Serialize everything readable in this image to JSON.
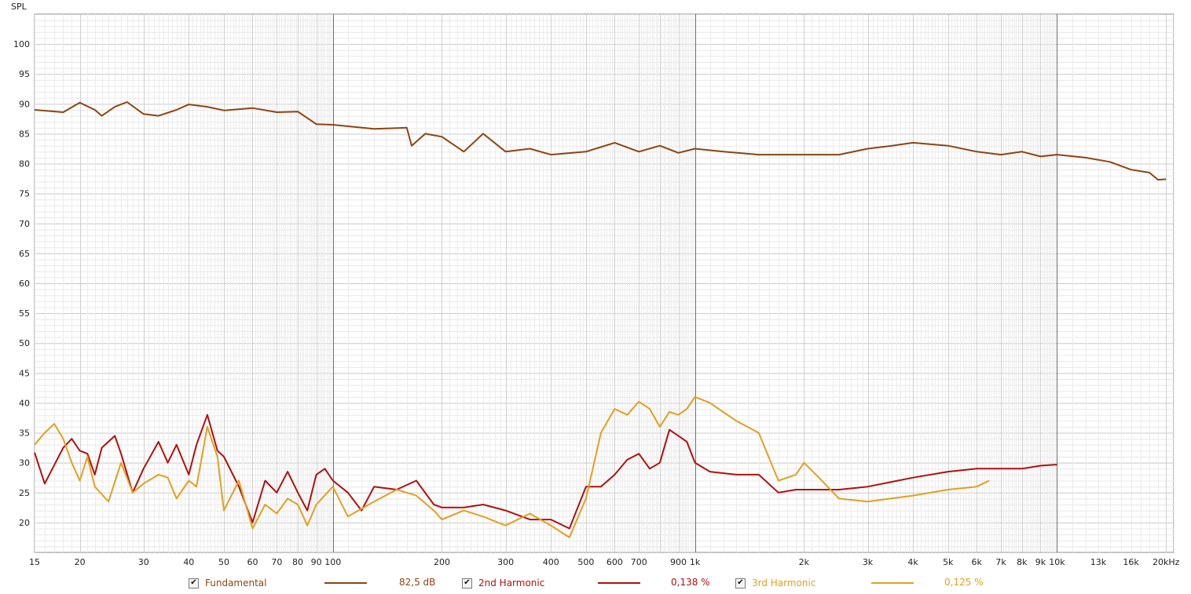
{
  "colors": {
    "fundamental": "#8B4513",
    "harmonic2": "#B01010",
    "harmonic3": "#E0A020",
    "grid_minor": "#d8d8d8",
    "grid_decade": "#6e6e6e",
    "text": "#222222"
  },
  "legend": [
    {
      "label": "Fundamental",
      "value": "82,5 dB",
      "checked": "✔"
    },
    {
      "label": "2nd Harmonic",
      "value": "0,138 %",
      "checked": "✔"
    },
    {
      "label": "3rd Harmonic",
      "value": "0,125 %",
      "checked": "✔"
    }
  ],
  "chart_data": {
    "type": "line",
    "ylabel": "SPL",
    "xscale": "log",
    "xlim": [
      15,
      21000
    ],
    "ylim": [
      15,
      105
    ],
    "grid": true,
    "y_ticks": [
      20,
      25,
      30,
      35,
      40,
      45,
      50,
      55,
      60,
      65,
      70,
      75,
      80,
      85,
      90,
      95,
      100
    ],
    "x_ticks": [
      {
        "v": 15,
        "label": "15"
      },
      {
        "v": 20,
        "label": "20"
      },
      {
        "v": 30,
        "label": "30"
      },
      {
        "v": 40,
        "label": "40"
      },
      {
        "v": 50,
        "label": "50"
      },
      {
        "v": 60,
        "label": "60"
      },
      {
        "v": 70,
        "label": "70"
      },
      {
        "v": 80,
        "label": "80"
      },
      {
        "v": 90,
        "label": "90"
      },
      {
        "v": 100,
        "label": "100"
      },
      {
        "v": 200,
        "label": "200"
      },
      {
        "v": 300,
        "label": "300"
      },
      {
        "v": 400,
        "label": "400"
      },
      {
        "v": 500,
        "label": "500"
      },
      {
        "v": 600,
        "label": "600"
      },
      {
        "v": 700,
        "label": "700"
      },
      {
        "v": 900,
        "label": "900"
      },
      {
        "v": 1000,
        "label": "1k"
      },
      {
        "v": 2000,
        "label": "2k"
      },
      {
        "v": 3000,
        "label": "3k"
      },
      {
        "v": 4000,
        "label": "4k"
      },
      {
        "v": 5000,
        "label": "5k"
      },
      {
        "v": 6000,
        "label": "6k"
      },
      {
        "v": 7000,
        "label": "7k"
      },
      {
        "v": 8000,
        "label": "8k"
      },
      {
        "v": 9000,
        "label": "9k"
      },
      {
        "v": 10000,
        "label": "10k"
      },
      {
        "v": 13000,
        "label": "13k"
      },
      {
        "v": 16000,
        "label": "16k"
      },
      {
        "v": 20000,
        "label": "20kHz"
      }
    ],
    "series": [
      {
        "name": "Fundamental",
        "points": [
          [
            15,
            89
          ],
          [
            18,
            88.6
          ],
          [
            20,
            90.2
          ],
          [
            22,
            89
          ],
          [
            23,
            88
          ],
          [
            25,
            89.5
          ],
          [
            27,
            90.3
          ],
          [
            30,
            88.3
          ],
          [
            33,
            88
          ],
          [
            37,
            89
          ],
          [
            40,
            89.9
          ],
          [
            45,
            89.5
          ],
          [
            50,
            88.9
          ],
          [
            60,
            89.3
          ],
          [
            70,
            88.6
          ],
          [
            80,
            88.7
          ],
          [
            90,
            86.6
          ],
          [
            100,
            86.5
          ],
          [
            130,
            85.8
          ],
          [
            160,
            86
          ],
          [
            165,
            83
          ],
          [
            180,
            85
          ],
          [
            200,
            84.5
          ],
          [
            230,
            82
          ],
          [
            260,
            85
          ],
          [
            300,
            82
          ],
          [
            350,
            82.5
          ],
          [
            400,
            81.5
          ],
          [
            500,
            82
          ],
          [
            600,
            83.5
          ],
          [
            700,
            82
          ],
          [
            800,
            83
          ],
          [
            900,
            81.8
          ],
          [
            1000,
            82.5
          ],
          [
            1200,
            82
          ],
          [
            1500,
            81.5
          ],
          [
            2000,
            81.5
          ],
          [
            2500,
            81.5
          ],
          [
            3000,
            82.5
          ],
          [
            3500,
            83
          ],
          [
            4000,
            83.5
          ],
          [
            5000,
            83
          ],
          [
            6000,
            82
          ],
          [
            7000,
            81.5
          ],
          [
            8000,
            82
          ],
          [
            9000,
            81.2
          ],
          [
            10000,
            81.5
          ],
          [
            12000,
            81
          ],
          [
            14000,
            80.3
          ],
          [
            16000,
            79
          ],
          [
            18000,
            78.5
          ],
          [
            19000,
            77.3
          ],
          [
            20000,
            77.4
          ]
        ]
      },
      {
        "name": "2nd Harmonic",
        "points": [
          [
            15,
            31.7
          ],
          [
            16,
            26.5
          ],
          [
            18,
            32.5
          ],
          [
            19,
            34
          ],
          [
            20,
            32
          ],
          [
            21,
            31.5
          ],
          [
            22,
            28
          ],
          [
            23,
            32.5
          ],
          [
            25,
            34.5
          ],
          [
            26,
            31.5
          ],
          [
            28,
            25
          ],
          [
            30,
            29
          ],
          [
            33,
            33.5
          ],
          [
            35,
            30
          ],
          [
            37,
            33
          ],
          [
            40,
            28
          ],
          [
            42,
            33
          ],
          [
            45,
            38
          ],
          [
            48,
            32
          ],
          [
            50,
            31
          ],
          [
            55,
            26
          ],
          [
            60,
            20
          ],
          [
            65,
            27
          ],
          [
            70,
            25
          ],
          [
            75,
            28.5
          ],
          [
            80,
            25
          ],
          [
            85,
            22
          ],
          [
            90,
            28
          ],
          [
            95,
            29
          ],
          [
            100,
            27
          ],
          [
            110,
            25
          ],
          [
            120,
            22
          ],
          [
            130,
            26
          ],
          [
            150,
            25.5
          ],
          [
            170,
            27
          ],
          [
            190,
            23
          ],
          [
            200,
            22.5
          ],
          [
            230,
            22.5
          ],
          [
            260,
            23
          ],
          [
            300,
            22
          ],
          [
            350,
            20.5
          ],
          [
            400,
            20.5
          ],
          [
            450,
            19
          ],
          [
            500,
            26
          ],
          [
            550,
            26
          ],
          [
            600,
            28
          ],
          [
            650,
            30.5
          ],
          [
            700,
            31.5
          ],
          [
            750,
            29
          ],
          [
            800,
            30
          ],
          [
            850,
            35.5
          ],
          [
            900,
            34.5
          ],
          [
            950,
            33.5
          ],
          [
            1000,
            30
          ],
          [
            1100,
            28.5
          ],
          [
            1300,
            28
          ],
          [
            1500,
            28
          ],
          [
            1700,
            25
          ],
          [
            1900,
            25.5
          ],
          [
            2000,
            25.5
          ],
          [
            2200,
            25.5
          ],
          [
            2500,
            25.5
          ],
          [
            3000,
            26
          ],
          [
            4000,
            27.5
          ],
          [
            5000,
            28.5
          ],
          [
            6000,
            29
          ],
          [
            7000,
            29
          ],
          [
            8000,
            29
          ],
          [
            9000,
            29.5
          ],
          [
            10000,
            29.7
          ]
        ]
      },
      {
        "name": "3rd Harmonic",
        "points": [
          [
            15,
            33
          ],
          [
            16,
            35
          ],
          [
            17,
            36.5
          ],
          [
            18,
            34
          ],
          [
            19,
            30
          ],
          [
            20,
            27
          ],
          [
            21,
            31
          ],
          [
            22,
            26
          ],
          [
            24,
            23.5
          ],
          [
            26,
            30
          ],
          [
            28,
            25
          ],
          [
            30,
            26.5
          ],
          [
            33,
            28
          ],
          [
            35,
            27.5
          ],
          [
            37,
            24
          ],
          [
            40,
            27
          ],
          [
            42,
            26
          ],
          [
            45,
            36
          ],
          [
            48,
            31
          ],
          [
            50,
            22
          ],
          [
            55,
            27
          ],
          [
            60,
            19
          ],
          [
            65,
            23
          ],
          [
            70,
            21.5
          ],
          [
            75,
            24
          ],
          [
            80,
            23
          ],
          [
            85,
            19.5
          ],
          [
            90,
            23
          ],
          [
            100,
            26
          ],
          [
            110,
            21
          ],
          [
            130,
            23.5
          ],
          [
            150,
            25.5
          ],
          [
            170,
            24.5
          ],
          [
            190,
            22
          ],
          [
            200,
            20.5
          ],
          [
            230,
            22
          ],
          [
            260,
            21
          ],
          [
            300,
            19.5
          ],
          [
            350,
            21.5
          ],
          [
            400,
            19.5
          ],
          [
            450,
            17.5
          ],
          [
            500,
            24
          ],
          [
            550,
            35
          ],
          [
            600,
            39
          ],
          [
            650,
            38
          ],
          [
            700,
            40.2
          ],
          [
            750,
            39
          ],
          [
            800,
            36
          ],
          [
            850,
            38.5
          ],
          [
            900,
            38
          ],
          [
            950,
            39
          ],
          [
            1000,
            41
          ],
          [
            1100,
            40
          ],
          [
            1300,
            37
          ],
          [
            1500,
            35
          ],
          [
            1700,
            27
          ],
          [
            1900,
            28
          ],
          [
            2000,
            30
          ],
          [
            2200,
            27.5
          ],
          [
            2500,
            24
          ],
          [
            3000,
            23.5
          ],
          [
            4000,
            24.5
          ],
          [
            5000,
            25.5
          ],
          [
            6000,
            26
          ],
          [
            6500,
            27
          ]
        ]
      }
    ]
  }
}
